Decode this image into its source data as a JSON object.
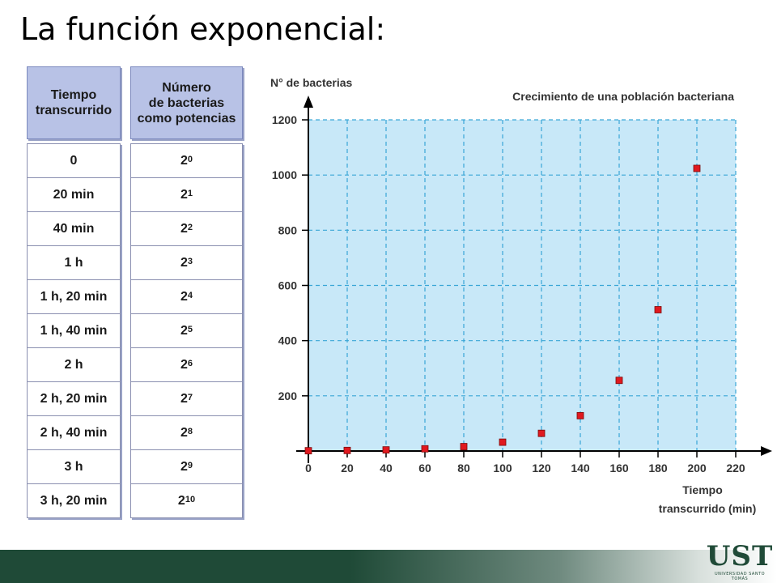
{
  "slide": {
    "title": "La función exponencial:"
  },
  "table": {
    "header_time": "Tiempo\ntranscurrido",
    "header_bacteria": "Número\nde bacterias\ncomo potencias",
    "rows": [
      {
        "time": "0",
        "base": "2",
        "exp": "0"
      },
      {
        "time": "20 min",
        "base": "2",
        "exp": "1"
      },
      {
        "time": "40 min",
        "base": "2",
        "exp": "2"
      },
      {
        "time": "1 h",
        "base": "2",
        "exp": "3"
      },
      {
        "time": "1 h, 20 min",
        "base": "2",
        "exp": "4"
      },
      {
        "time": "1 h, 40 min",
        "base": "2",
        "exp": "5"
      },
      {
        "time": "2 h",
        "base": "2",
        "exp": "6"
      },
      {
        "time": "2 h, 20 min",
        "base": "2",
        "exp": "7"
      },
      {
        "time": "2 h, 40 min",
        "base": "2",
        "exp": "8"
      },
      {
        "time": "3 h",
        "base": "2",
        "exp": "9"
      },
      {
        "time": "3 h, 20 min",
        "base": "2",
        "exp": "10"
      }
    ]
  },
  "chart_data": {
    "type": "scatter",
    "title": "Crecimiento de una población bacteriana",
    "ylabel": "N° de bacterias",
    "xlabel_lines": [
      "Tiempo",
      "transcurrido (min)"
    ],
    "x_ticks": [
      0,
      20,
      40,
      60,
      80,
      100,
      120,
      140,
      160,
      180,
      200,
      220
    ],
    "y_ticks": [
      200,
      400,
      600,
      800,
      1000,
      1200
    ],
    "xlim": [
      0,
      220
    ],
    "ylim": [
      0,
      1200
    ],
    "grid": true,
    "background_color": "#c8e8f8",
    "grid_color": "#3aa6d6",
    "marker_color": "#e0191f",
    "x": [
      0,
      20,
      40,
      60,
      80,
      100,
      120,
      140,
      160,
      180,
      200
    ],
    "y": [
      1,
      2,
      4,
      8,
      16,
      32,
      64,
      128,
      256,
      512,
      1024
    ]
  },
  "footer": {
    "bar_color": "#1f4a37",
    "logo_text": "UST",
    "logo_subtext": "UNIVERSIDAD SANTO TOMÁS"
  }
}
